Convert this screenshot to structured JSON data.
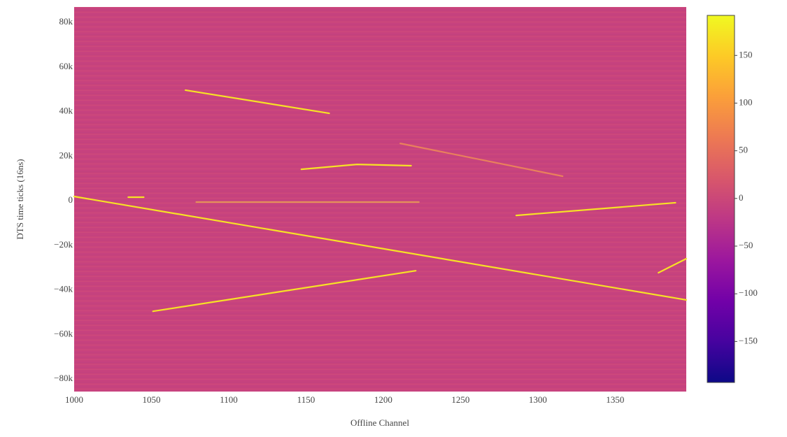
{
  "chart_data": {
    "type": "heatmap",
    "x_label": "Offline Channel",
    "y_label": "DTS time ticks (16ns)",
    "xlim": [
      1000,
      1396
    ],
    "xticks": [
      1000,
      1050,
      1100,
      1150,
      1200,
      1250,
      1300,
      1350
    ],
    "ylim": [
      -85600,
      86900
    ],
    "yticks": [
      {
        "value": 80000,
        "label": "80k"
      },
      {
        "value": 60000,
        "label": "60k"
      },
      {
        "value": 40000,
        "label": "40k"
      },
      {
        "value": 20000,
        "label": "20k"
      },
      0,
      {
        "value": -20000,
        "label": "−20k"
      },
      {
        "value": -40000,
        "label": "−40k"
      },
      {
        "value": -60000,
        "label": "−60k"
      },
      {
        "value": -80000,
        "label": "−80k"
      }
    ],
    "zlim": [
      -193,
      192
    ],
    "zticks": [
      150,
      100,
      50,
      0,
      {
        "value": -50,
        "label": "−50"
      },
      {
        "value": -100,
        "label": "−100"
      },
      {
        "value": -150,
        "label": "−150"
      }
    ],
    "colorscale": [
      "#0d0887",
      "#46039f",
      "#7201a8",
      "#9c179e",
      "#bd3786",
      "#d8576b",
      "#ed7953",
      "#fb9f3a",
      "#fdca26",
      "#f0f921"
    ],
    "background_color": "#c8437c",
    "series": [
      {
        "color": "#f7e225",
        "x": [
          1000,
          1396
        ],
        "values": [
          1900,
          -44500
        ]
      },
      {
        "color": "#f7e225",
        "x": [
          1072,
          1165
        ],
        "values": [
          49600,
          39200
        ]
      },
      {
        "color": "#f7e225",
        "x": [
          1147,
          1183,
          1218
        ],
        "values": [
          14100,
          16300,
          15700
        ]
      },
      {
        "color": "#f7e225",
        "x": [
          1051,
          1221
        ],
        "values": [
          -49600,
          -31400
        ]
      },
      {
        "color": "#f7e225",
        "x": [
          1286,
          1389
        ],
        "values": [
          -6600,
          -900
        ]
      },
      {
        "color": "#e9805c",
        "x": [
          1211,
          1316
        ],
        "values": [
          25700,
          11000
        ]
      },
      {
        "color": "#f7e225",
        "x": [
          1378,
          1396
        ],
        "values": [
          -32300,
          -26000
        ]
      },
      {
        "color": "#f7e225",
        "x": [
          1035,
          1045
        ],
        "values": [
          1600,
          1600
        ]
      },
      {
        "color": "#e5905a",
        "x": [
          1079,
          1223
        ],
        "values": [
          -600,
          -600
        ]
      }
    ]
  }
}
